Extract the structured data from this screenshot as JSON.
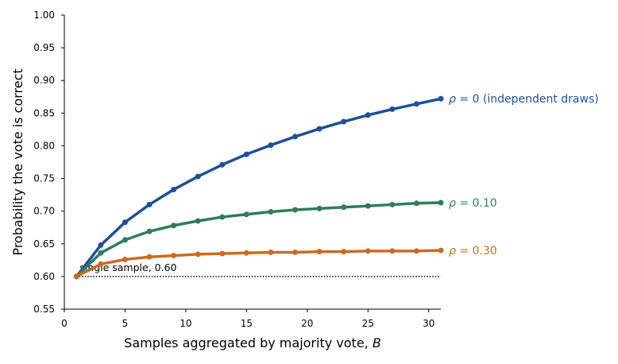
{
  "chart_data": {
    "type": "line",
    "xlabel": "Samples aggregated by majority vote, ",
    "xlabel_var": "B",
    "ylabel": "Probability the vote is correct",
    "xlim": [
      0,
      31
    ],
    "ylim": [
      0.55,
      1.0
    ],
    "xticks": [
      "0",
      "5",
      "10",
      "15",
      "20",
      "25",
      "30"
    ],
    "yticks": [
      "0.55",
      "0.60",
      "0.65",
      "0.70",
      "0.75",
      "0.80",
      "0.85",
      "0.90",
      "0.95",
      "1.00"
    ],
    "grid": false,
    "x": [
      1,
      3,
      5,
      7,
      9,
      11,
      13,
      15,
      17,
      19,
      21,
      23,
      25,
      27,
      29,
      31
    ],
    "series": [
      {
        "name": "ρ = 0  (independent draws)",
        "label_rho": "ρ",
        "label_rest": " = 0  (independent draws)",
        "color": "#1f4e99",
        "values": [
          0.6,
          0.648,
          0.683,
          0.71,
          0.733,
          0.753,
          0.771,
          0.787,
          0.801,
          0.814,
          0.826,
          0.837,
          0.847,
          0.856,
          0.864,
          0.872
        ]
      },
      {
        "name": "ρ = 0.10",
        "label_rho": "ρ",
        "label_rest": " = 0.10",
        "color": "#2e7d5b",
        "values": [
          0.6,
          0.636,
          0.656,
          0.669,
          0.678,
          0.685,
          0.691,
          0.695,
          0.699,
          0.702,
          0.704,
          0.706,
          0.708,
          0.71,
          0.712,
          0.713
        ]
      },
      {
        "name": "ρ = 0.30",
        "label_rho": "ρ",
        "label_rest": " = 0.30",
        "color": "#cc6a1f",
        "values": [
          0.6,
          0.619,
          0.626,
          0.63,
          0.632,
          0.634,
          0.635,
          0.636,
          0.637,
          0.637,
          0.638,
          0.638,
          0.639,
          0.639,
          0.639,
          0.64
        ]
      }
    ],
    "reference_line": {
      "y": 0.6,
      "label": "single sample, 0.60",
      "style": "dotted",
      "color": "#000000"
    }
  }
}
